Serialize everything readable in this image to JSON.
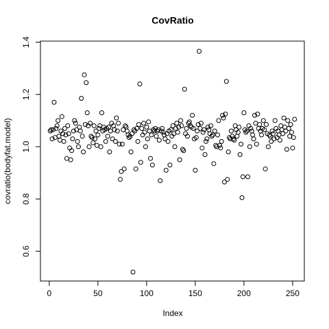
{
  "chart_data": {
    "type": "scatter",
    "title": "CovRatio",
    "x_label": "Index",
    "y_label": "covratio(bodyfat.model)",
    "x": [
      1,
      2,
      3,
      4,
      5,
      6,
      7,
      8,
      9,
      10,
      11,
      12,
      13,
      14,
      15,
      16,
      17,
      18,
      19,
      20,
      21,
      22,
      23,
      24,
      25,
      26,
      27,
      28,
      29,
      30,
      31,
      32,
      33,
      34,
      35,
      36,
      37,
      38,
      39,
      40,
      41,
      42,
      43,
      44,
      45,
      46,
      47,
      48,
      49,
      50,
      51,
      52,
      53,
      54,
      55,
      56,
      57,
      58,
      59,
      60,
      61,
      62,
      63,
      64,
      65,
      66,
      67,
      68,
      69,
      70,
      71,
      72,
      73,
      74,
      75,
      76,
      77,
      78,
      79,
      80,
      81,
      82,
      83,
      84,
      85,
      86,
      87,
      88,
      89,
      90,
      91,
      92,
      93,
      94,
      95,
      96,
      97,
      98,
      99,
      100,
      101,
      102,
      103,
      104,
      105,
      106,
      107,
      108,
      109,
      110,
      111,
      112,
      113,
      114,
      115,
      116,
      117,
      118,
      119,
      120,
      121,
      122,
      123,
      124,
      125,
      126,
      127,
      128,
      129,
      130,
      131,
      132,
      133,
      134,
      135,
      136,
      137,
      138,
      139,
      140,
      141,
      142,
      143,
      144,
      145,
      146,
      147,
      148,
      149,
      150,
      151,
      152,
      153,
      154,
      155,
      156,
      157,
      158,
      159,
      160,
      161,
      162,
      163,
      164,
      165,
      166,
      167,
      168,
      169,
      170,
      171,
      172,
      173,
      174,
      175,
      176,
      177,
      178,
      179,
      180,
      181,
      182,
      183,
      184,
      185,
      186,
      187,
      188,
      189,
      190,
      191,
      192,
      193,
      194,
      195,
      196,
      197,
      198,
      199,
      200,
      201,
      202,
      203,
      204,
      205,
      206,
      207,
      208,
      209,
      210,
      211,
      212,
      213,
      214,
      215,
      216,
      217,
      218,
      219,
      220,
      221,
      222,
      223,
      224,
      225,
      226,
      227,
      228,
      229,
      230,
      231,
      232,
      233,
      234,
      235,
      236,
      237,
      238,
      239,
      240,
      241,
      242,
      243,
      244,
      245,
      246,
      247,
      248,
      249,
      250,
      251,
      252
    ],
    "values": [
      1.06,
      1.065,
      1.03,
      1.065,
      1.17,
      1.035,
      1.07,
      1.08,
      1.1,
      1.04,
      1.025,
      1.06,
      1.115,
      1.05,
      1.02,
      1.07,
      1.045,
      0.955,
      1.08,
      1.05,
      0.995,
      0.95,
      0.985,
      1.03,
      1.06,
      1.1,
      1.09,
      1.065,
      1.02,
      1.0,
      1.075,
      1.06,
      1.185,
      1.04,
      0.98,
      1.275,
      1.085,
      1.245,
      1.13,
      1.08,
      1.0,
      1.09,
      1.04,
      1.035,
      1.015,
      1.08,
      1.03,
      1.06,
      1.005,
      1.045,
      1.07,
      1.08,
      1.0,
      1.13,
      1.06,
      1.075,
      1.065,
      1.02,
      1.07,
      1.04,
      1.075,
      0.98,
      1.06,
      1.09,
      1.03,
      1.08,
      1.065,
      1.02,
      1.11,
      1.06,
      1.09,
      1.01,
      0.875,
      0.905,
      1.01,
      1.065,
      0.915,
      1.08,
      1.075,
      1.06,
      1.045,
      1.035,
      1.04,
      0.98,
      1.05,
      0.52,
      1.065,
      1.06,
      0.915,
      1.07,
      1.02,
      1.085,
      1.24,
      0.94,
      1.07,
      1.045,
      1.09,
      1.055,
      1.0,
      1.075,
      1.03,
      1.095,
      1.06,
      0.955,
      1.045,
      0.93,
      1.065,
      1.06,
      1.07,
      1.04,
      1.06,
      1.065,
      1.025,
      0.87,
      1.06,
      1.07,
      1.055,
      1.045,
      1.03,
      0.91,
      1.05,
      1.02,
      1.06,
      0.93,
      1.065,
      1.04,
      1.08,
      1.05,
      1.0,
      1.07,
      1.09,
      1.055,
      1.075,
      0.95,
      1.1,
      1.08,
      0.99,
      0.985,
      1.22,
      1.05,
      1.07,
      1.04,
      1.09,
      1.095,
      1.08,
      1.075,
      1.12,
      1.07,
      1.03,
      0.91,
      1.035,
      1.06,
      1.085,
      1.365,
      1.07,
      1.09,
      0.995,
      1.055,
      1.065,
      0.97,
      1.02,
      1.03,
      1.075,
      1.065,
      1.05,
      1.08,
      1.04,
      1.045,
      0.935,
      1.06,
      1.005,
      1.0,
      1.045,
      1.1,
      1.005,
      0.995,
      1.02,
      1.12,
      1.11,
      0.865,
      1.125,
      1.25,
      0.875,
      0.98,
      1.035,
      1.03,
      1.06,
      1.04,
      1.03,
      1.025,
      1.08,
      1.065,
      1.04,
      1.055,
      1.075,
      0.97,
      1.01,
      0.805,
      0.885,
      1.13,
      1.065,
      1.055,
      1.06,
      0.885,
      1.08,
      1.0,
      1.07,
      1.06,
      1.045,
      1.03,
      1.12,
      1.09,
      1.01,
      1.125,
      1.07,
      1.085,
      1.06,
      1.045,
      1.07,
      1.1,
      1.065,
      0.915,
      1.085,
      1.05,
      1.0,
      1.045,
      1.04,
      1.02,
      1.06,
      1.05,
      1.03,
      1.1,
      1.07,
      1.035,
      1.06,
      1.045,
      1.025,
      1.08,
      1.065,
      1.05,
      1.11,
      1.075,
      1.06,
      0.99,
      1.1,
      1.07,
      1.04,
      1.085,
      1.055,
      0.995,
      1.035,
      1.105
    ],
    "color": "#000000",
    "xlim": [
      -9.04,
      262.04
    ],
    "xticks": [
      0,
      50,
      100,
      150,
      200,
      250
    ],
    "ylim": [
      0.486,
      1.404
    ],
    "yticks": [
      0.6,
      0.8,
      {
        "value": 1,
        "label": "1.0"
      },
      1.2,
      1.4
    ]
  }
}
